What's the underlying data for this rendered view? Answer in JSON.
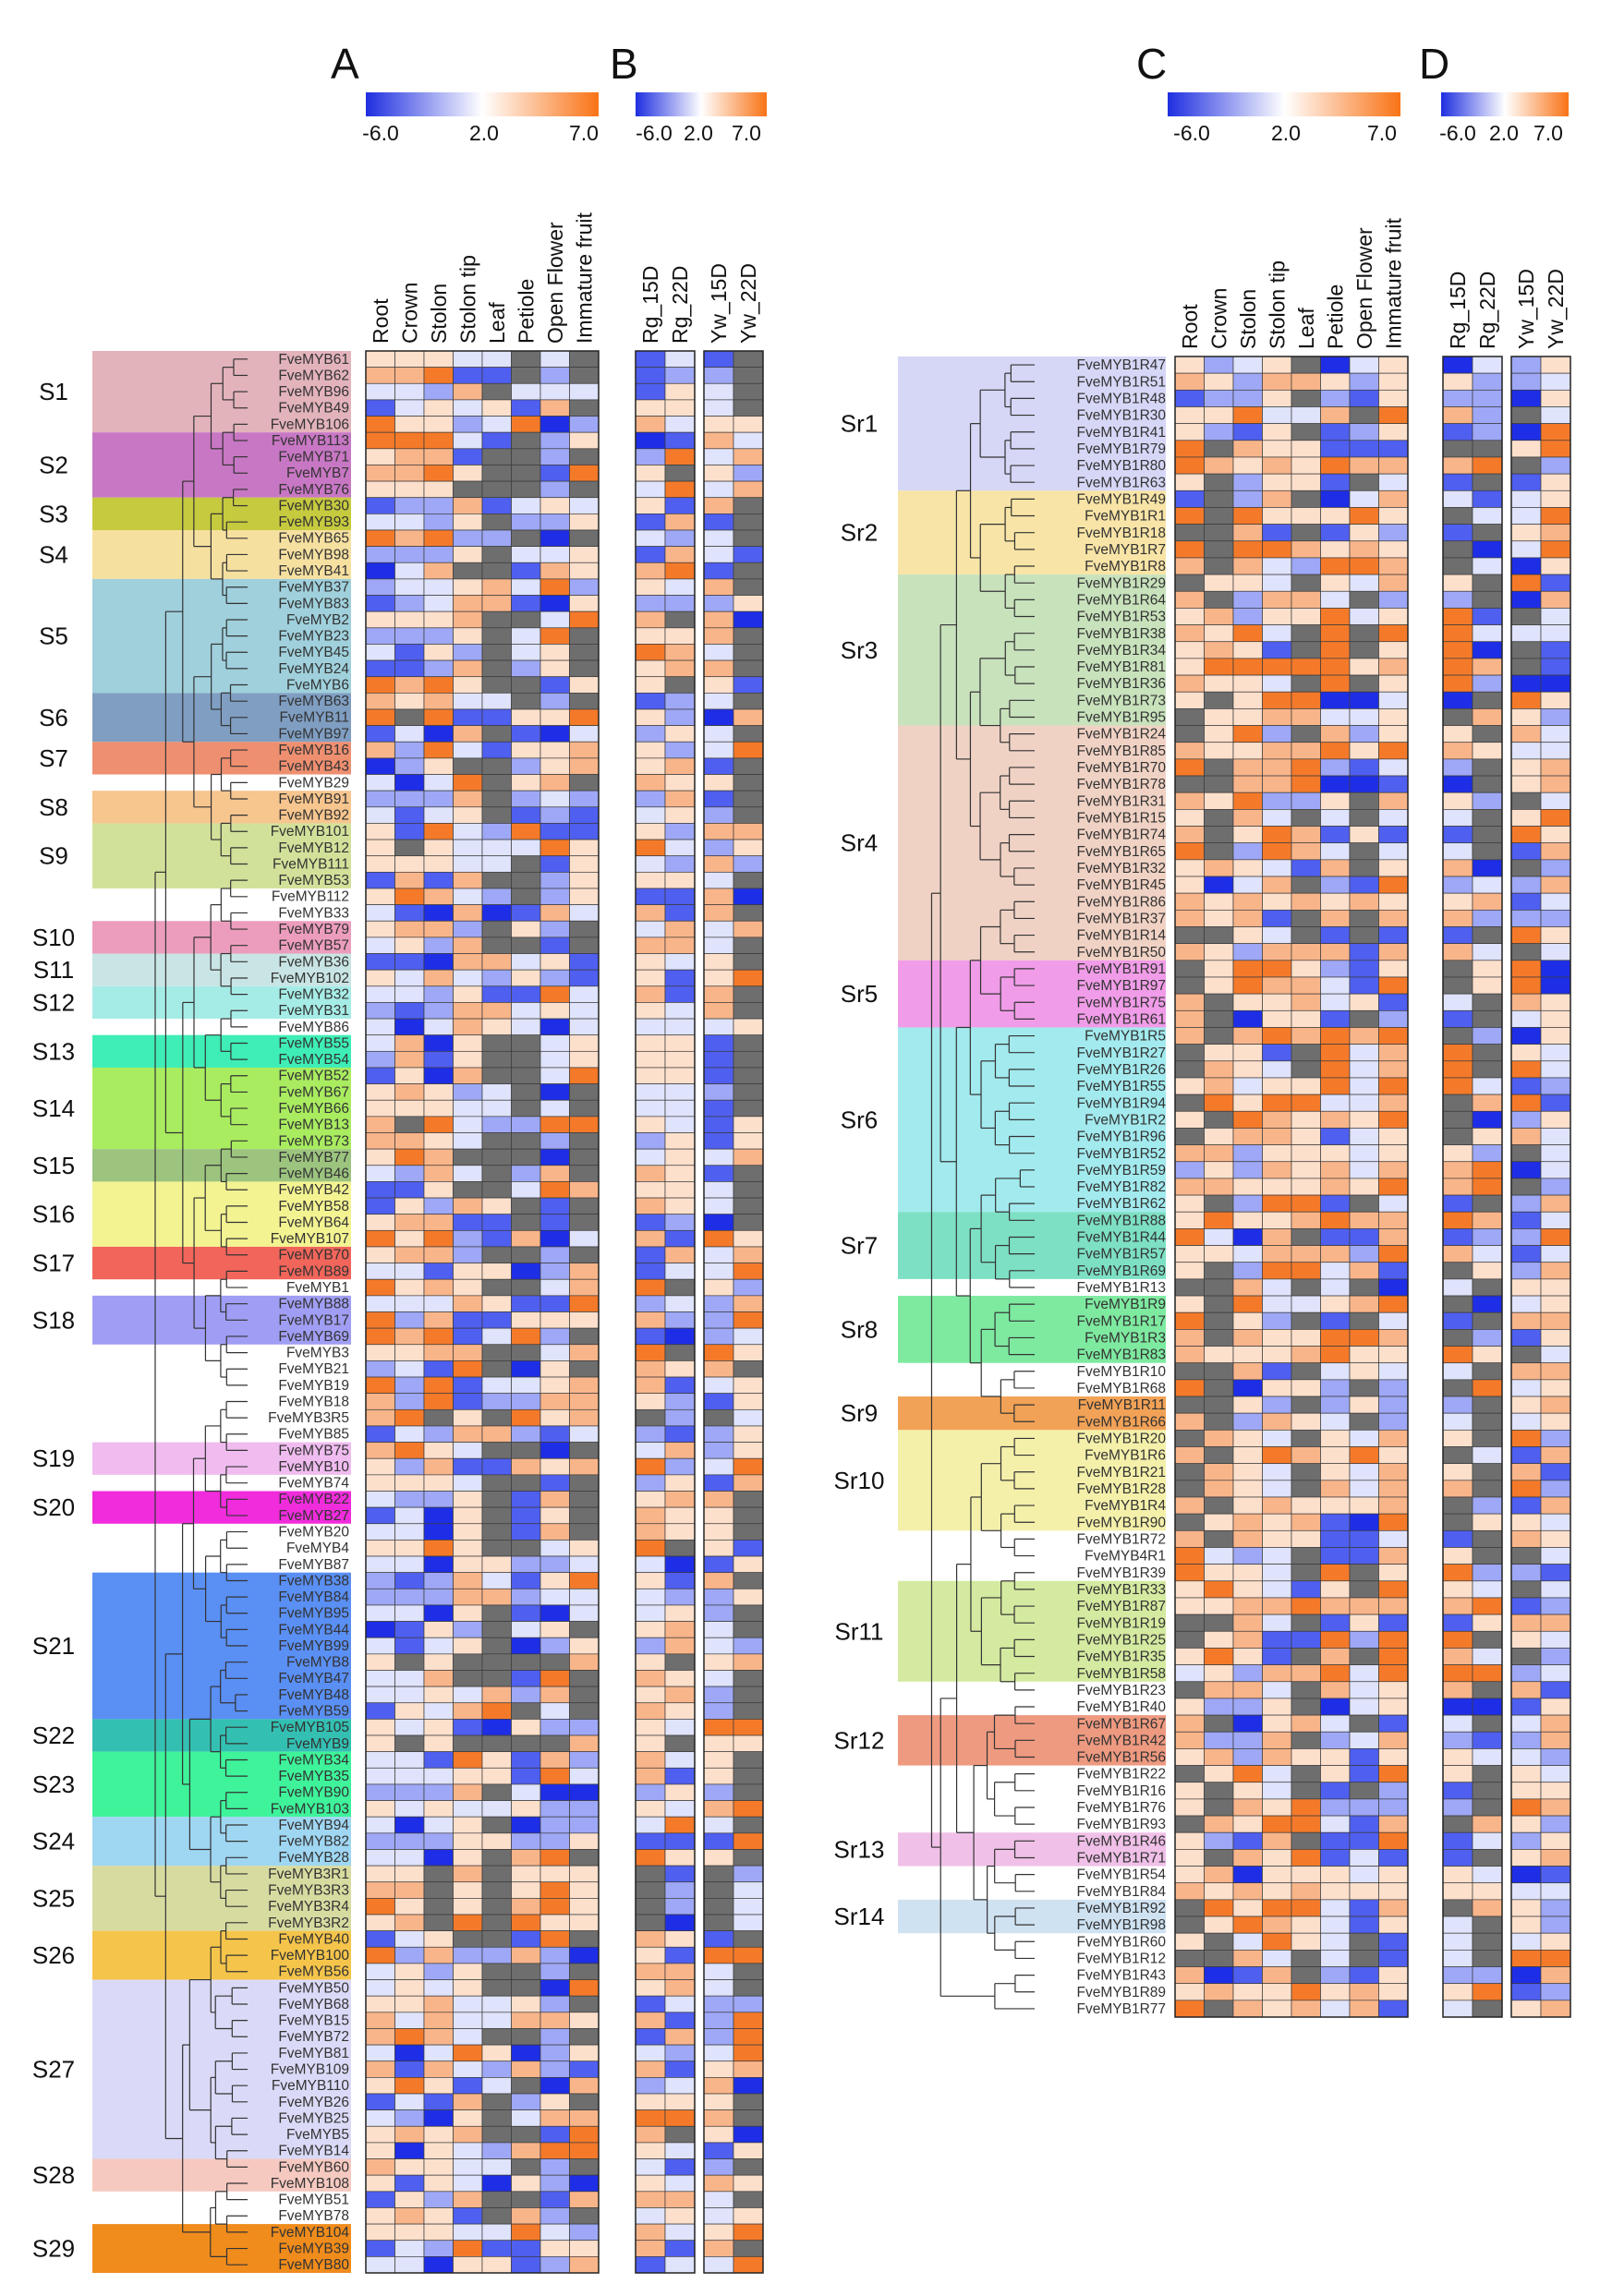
{
  "chart_data": [
    {
      "panel": "A",
      "type": "heatmap",
      "colorbar": {
        "min": -6.0,
        "mid": 2.0,
        "max": 7.0,
        "ticks": [
          "-6.0",
          "2.0",
          "7.0"
        ],
        "colors": [
          "#1f2fe0",
          "#ffffff",
          "#f97316"
        ]
      },
      "columns": [
        "Root",
        "Crown",
        "Stolon",
        "Stolon tip",
        "Leaf",
        "Petiole",
        "Open Flower",
        "Immature fruit"
      ],
      "rows": [
        "FveMYB61",
        "FveMYB62",
        "FveMYB96",
        "FveMYB49",
        "FveMYB106",
        "FveMYB113",
        "FveMYB71",
        "FveMYB7",
        "FveMYB76",
        "FveMYB30",
        "FveMYB93",
        "FveMYB65",
        "FveMYB98",
        "FveMYB41",
        "FveMYB37",
        "FveMYB83",
        "FveMYB2",
        "FveMYB23",
        "FveMYB45",
        "FveMYB24",
        "FveMYB6",
        "FveMYB63",
        "FveMYB11",
        "FveMYB97",
        "FveMYB16",
        "FveMYB43",
        "FveMYB29",
        "FveMYB91",
        "FveMYB92",
        "FveMYB101",
        "FveMYB12",
        "FveMYB111",
        "FveMYB53",
        "FveMYB112",
        "FveMYB33",
        "FveMYB79",
        "FveMYB57",
        "FveMYB36",
        "FveMYB102",
        "FveMYB32",
        "FveMYB31",
        "FveMYB86",
        "FveMYB55",
        "FveMYB54",
        "FveMYB52",
        "FveMYB67",
        "FveMYB66",
        "FveMYB13",
        "FveMYB73",
        "FveMYB77",
        "FveMYB46",
        "FveMYB42",
        "FveMYB58",
        "FveMYB64",
        "FveMYB107",
        "FveMYB70",
        "FveMYB89",
        "FveMYB1",
        "FveMYB88",
        "FveMYB17",
        "FveMYB69",
        "FveMYB3",
        "FveMYB21",
        "FveMYB19",
        "FveMYB18",
        "FveMYB3R5",
        "FveMYB85",
        "FveMYB75",
        "FveMYB10",
        "FveMYB74",
        "FveMYB22",
        "FveMYB27",
        "FveMYB20",
        "FveMYB4",
        "FveMYB87",
        "FveMYB38",
        "FveMYB84",
        "FveMYB95",
        "FveMYB44",
        "FveMYB99",
        "FveMYB8",
        "FveMYB47",
        "FveMYB48",
        "FveMYB59",
        "FveMYB105",
        "FveMYB9",
        "FveMYB34",
        "FveMYB35",
        "FveMYB90",
        "FveMYB103",
        "FveMYB94",
        "FveMYB82",
        "FveMYB28",
        "FveMYB3R1",
        "FveMYB3R3",
        "FveMYB3R4",
        "FveMYB3R2",
        "FveMYB40",
        "FveMYB100",
        "FveMYB56",
        "FveMYB50",
        "FveMYB68",
        "FveMYB15",
        "FveMYB72",
        "FveMYB81",
        "FveMYB109",
        "FveMYB110",
        "FveMYB26",
        "FveMYB25",
        "FveMYB5",
        "FveMYB14",
        "FveMYB60",
        "FveMYB108",
        "FveMYB51",
        "FveMYB78",
        "FveMYB104",
        "FveMYB39",
        "FveMYB80"
      ],
      "groups": [
        {
          "name": "S1",
          "start": 0,
          "count": 5,
          "color": "#e3b3bc"
        },
        {
          "name": "S2",
          "start": 5,
          "count": 4,
          "color": "#c877c4"
        },
        {
          "name": "S3",
          "start": 9,
          "count": 2,
          "color": "#c6ca3e"
        },
        {
          "name": "S4",
          "start": 11,
          "count": 3,
          "color": "#f6e0a0"
        },
        {
          "name": "S5",
          "start": 14,
          "count": 7,
          "color": "#9fd0dc"
        },
        {
          "name": "S6",
          "start": 21,
          "count": 3,
          "color": "#7f9ec2"
        },
        {
          "name": "S7",
          "start": 24,
          "count": 2,
          "color": "#ee8f70"
        },
        {
          "name": "S8",
          "start": 27,
          "count": 2,
          "color": "#f7c58e"
        },
        {
          "name": "S9",
          "start": 29,
          "count": 4,
          "color": "#d2e19a"
        },
        {
          "name": "S10",
          "start": 35,
          "count": 2,
          "color": "#ec9dbd"
        },
        {
          "name": "S11",
          "start": 37,
          "count": 2,
          "color": "#c9e4e4"
        },
        {
          "name": "S12",
          "start": 39,
          "count": 2,
          "color": "#a6ece6"
        },
        {
          "name": "S13",
          "start": 42,
          "count": 2,
          "color": "#3eeeb6"
        },
        {
          "name": "S14",
          "start": 44,
          "count": 5,
          "color": "#a9ec60"
        },
        {
          "name": "S15",
          "start": 49,
          "count": 2,
          "color": "#9cc47e"
        },
        {
          "name": "S16",
          "start": 51,
          "count": 4,
          "color": "#f3f392"
        },
        {
          "name": "S17",
          "start": 55,
          "count": 2,
          "color": "#f2655a"
        },
        {
          "name": "S18",
          "start": 58,
          "count": 3,
          "color": "#a09ef4"
        },
        {
          "name": "S19",
          "start": 67,
          "count": 2,
          "color": "#f0bcf0"
        },
        {
          "name": "S20",
          "start": 70,
          "count": 2,
          "color": "#f02cdc"
        },
        {
          "name": "S21",
          "start": 75,
          "count": 9,
          "color": "#5a8ff4"
        },
        {
          "name": "S22",
          "start": 84,
          "count": 2,
          "color": "#33c0b2"
        },
        {
          "name": "S23",
          "start": 86,
          "count": 4,
          "color": "#3ef39a"
        },
        {
          "name": "S24",
          "start": 90,
          "count": 3,
          "color": "#9fd6f2"
        },
        {
          "name": "S25",
          "start": 93,
          "count": 4,
          "color": "#d7dba0"
        },
        {
          "name": "S26",
          "start": 97,
          "count": 3,
          "color": "#f5c44a"
        },
        {
          "name": "S27",
          "start": 100,
          "count": 11,
          "color": "#dadaf8"
        },
        {
          "name": "S28",
          "start": 111,
          "count": 2,
          "color": "#f6c9c0"
        },
        {
          "name": "S29",
          "start": 115,
          "count": 3,
          "color": "#f08c1c"
        }
      ]
    },
    {
      "panel": "B",
      "type": "heatmap",
      "colorbar": {
        "min": -6.0,
        "mid": 2.0,
        "max": 7.0,
        "ticks": [
          "-6.0",
          "2.0",
          "7.0"
        ],
        "colors": [
          "#1f2fe0",
          "#ffffff",
          "#f97316"
        ]
      },
      "column_blocks": [
        [
          "Rg_15D",
          "Rg_22D"
        ],
        [
          "Yw_15D",
          "Yw_22D"
        ]
      ],
      "rows_from": "A"
    },
    {
      "panel": "C",
      "type": "heatmap",
      "colorbar": {
        "min": -6.0,
        "mid": 2.0,
        "max": 7.0,
        "ticks": [
          "-6.0",
          "2.0",
          "7.0"
        ],
        "colors": [
          "#1f2fe0",
          "#ffffff",
          "#f97316"
        ]
      },
      "columns": [
        "Root",
        "Crown",
        "Stolon",
        "Stolon tip",
        "Leaf",
        "Petiole",
        "Open Flower",
        "Immature fruit"
      ],
      "rows": [
        "FveMYB1R47",
        "FveMYB1R51",
        "FveMYB1R48",
        "FveMYB1R30",
        "FveMYB1R41",
        "FveMYB1R79",
        "FveMYB1R80",
        "FveMYB1R63",
        "FveMYB1R49",
        "FveMYB1R1",
        "FveMYB1R18",
        "FveMYB1R7",
        "FveMYB1R8",
        "FveMYB1R29",
        "FveMYB1R64",
        "FveMYB1R53",
        "FveMYB1R38",
        "FveMYB1R34",
        "FveMYB1R81",
        "FveMYB1R36",
        "FveMYB1R73",
        "FveMYB1R95",
        "FveMYB1R24",
        "FveMYB1R85",
        "FveMYB1R70",
        "FveMYB1R78",
        "FveMYB1R31",
        "FveMYB1R15",
        "FveMYB1R74",
        "FveMYB1R65",
        "FveMYB1R32",
        "FveMYB1R45",
        "FveMYB1R86",
        "FveMYB1R37",
        "FveMYB1R14",
        "FveMYB1R50",
        "FveMYB1R91",
        "FveMYB1R97",
        "FveMYB1R75",
        "FveMYB1R61",
        "FveMYB1R5",
        "FveMYB1R27",
        "FveMYB1R26",
        "FveMYB1R55",
        "FveMYB1R94",
        "FveMYB1R2",
        "FveMYB1R96",
        "FveMYB1R52",
        "FveMYB1R59",
        "FveMYB1R82",
        "FveMYB1R62",
        "FveMYB1R88",
        "FveMYB1R44",
        "FveMYB1R57",
        "FveMYB1R69",
        "FveMYB1R13",
        "FveMYB1R9",
        "FveMYB1R17",
        "FveMYB1R3",
        "FveMYB1R83",
        "FveMYB1R10",
        "FveMYB1R68",
        "FveMYB1R11",
        "FveMYB1R66",
        "FveMYB1R20",
        "FveMYB1R6",
        "FveMYB1R21",
        "FveMYB1R28",
        "FveMYB1R4",
        "FveMYB1R90",
        "FveMYB1R72",
        "FveMYB4R1",
        "FveMYB1R39",
        "FveMYB1R33",
        "FveMYB1R87",
        "FveMYB1R19",
        "FveMYB1R25",
        "FveMYB1R35",
        "FveMYB1R58",
        "FveMYB1R23",
        "FveMYB1R40",
        "FveMYB1R67",
        "FveMYB1R42",
        "FveMYB1R56",
        "FveMYB1R22",
        "FveMYB1R16",
        "FveMYB1R76",
        "FveMYB1R93",
        "FveMYB1R46",
        "FveMYB1R71",
        "FveMYB1R54",
        "FveMYB1R84",
        "FveMYB1R92",
        "FveMYB1R98",
        "FveMYB1R60",
        "FveMYB1R12",
        "FveMYB1R43",
        "FveMYB1R89",
        "FveMYB1R77"
      ],
      "groups": [
        {
          "name": "Sr1",
          "start": 0,
          "count": 8,
          "color": "#d6d6f6"
        },
        {
          "name": "Sr2",
          "start": 8,
          "count": 5,
          "color": "#f8e4a6"
        },
        {
          "name": "Sr3",
          "start": 13,
          "count": 9,
          "color": "#c8e2bc"
        },
        {
          "name": "Sr4",
          "start": 22,
          "count": 14,
          "color": "#f0d2c4"
        },
        {
          "name": "Sr5",
          "start": 36,
          "count": 4,
          "color": "#f09ce8"
        },
        {
          "name": "Sr6",
          "start": 40,
          "count": 11,
          "color": "#a2eaee"
        },
        {
          "name": "Sr7",
          "start": 51,
          "count": 4,
          "color": "#7de0c4"
        },
        {
          "name": "Sr8",
          "start": 56,
          "count": 4,
          "color": "#7eeaa0"
        },
        {
          "name": "Sr9",
          "start": 62,
          "count": 2,
          "color": "#f2a256"
        },
        {
          "name": "Sr10",
          "start": 64,
          "count": 6,
          "color": "#f4f0aa"
        },
        {
          "name": "Sr11",
          "start": 73,
          "count": 6,
          "color": "#d4eaa0"
        },
        {
          "name": "Sr12",
          "start": 81,
          "count": 3,
          "color": "#ee9a80"
        },
        {
          "name": "Sr13",
          "start": 88,
          "count": 2,
          "color": "#f0c0e8"
        },
        {
          "name": "Sr14",
          "start": 92,
          "count": 2,
          "color": "#cfe2f2"
        }
      ]
    },
    {
      "panel": "D",
      "type": "heatmap",
      "colorbar": {
        "min": -6.0,
        "mid": 2.0,
        "max": 7.0,
        "ticks": [
          "-6.0",
          "2.0",
          "7.0"
        ],
        "colors": [
          "#1f2fe0",
          "#ffffff",
          "#f97316"
        ]
      },
      "column_blocks": [
        [
          "Rg_15D",
          "Rg_22D"
        ],
        [
          "Yw_15D",
          "Yw_22D"
        ]
      ],
      "rows_from": "C"
    }
  ]
}
